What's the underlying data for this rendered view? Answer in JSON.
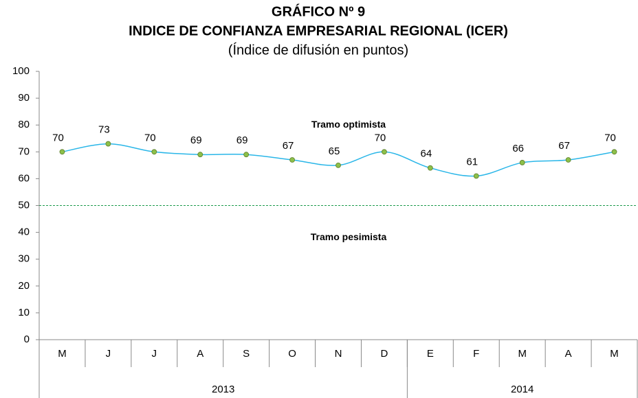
{
  "chart_data": {
    "type": "line",
    "title": "GRÁFICO Nº 9",
    "subtitle": "INDICE DE CONFIANZA EMPRESARIAL REGIONAL (ICER)",
    "y_axis_label": "(Índice de difusión en puntos)",
    "categories": [
      "M",
      "J",
      "J",
      "A",
      "S",
      "O",
      "N",
      "D",
      "E",
      "F",
      "M",
      "A",
      "M"
    ],
    "category_groups": [
      {
        "label": "2013",
        "count": 8
      },
      {
        "label": "2014",
        "count": 5
      }
    ],
    "series": [
      {
        "name": "ICER",
        "color": "#29b6e8",
        "marker_color": "#8dc04a",
        "values": [
          70,
          73,
          70,
          69,
          69,
          67,
          65,
          70,
          64,
          61,
          66,
          67,
          70
        ]
      }
    ],
    "reference_line": {
      "value": 50,
      "color": "#1a9a4a"
    },
    "annotations": [
      {
        "text": "Tramo optimista",
        "value": 80
      },
      {
        "text": "Tramo pesimista",
        "value": 38
      }
    ],
    "ylim": [
      0,
      100
    ],
    "yticks": [
      0,
      10,
      20,
      30,
      40,
      50,
      60,
      70,
      80,
      90,
      100
    ],
    "grid": false
  }
}
